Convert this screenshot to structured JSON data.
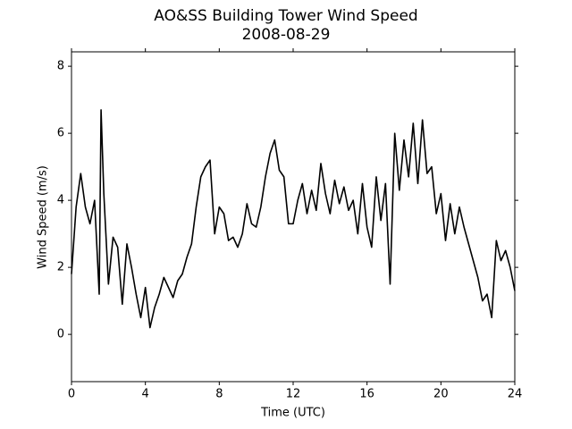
{
  "chart_data": {
    "type": "line",
    "title": "AO&SS Building Tower Wind Speed",
    "subtitle": "2008-08-29",
    "x_label": "Time (UTC)",
    "y_label": "Wind Speed (m/s)",
    "x": [
      0,
      0.25,
      0.5,
      0.75,
      1.0,
      1.25,
      1.5,
      1.6,
      1.75,
      2.0,
      2.25,
      2.5,
      2.75,
      3.0,
      3.25,
      3.5,
      3.75,
      4.0,
      4.25,
      4.5,
      4.75,
      5.0,
      5.25,
      5.5,
      5.75,
      6.0,
      6.25,
      6.5,
      6.75,
      7.0,
      7.25,
      7.5,
      7.75,
      8.0,
      8.25,
      8.5,
      8.75,
      9.0,
      9.25,
      9.5,
      9.75,
      10.0,
      10.25,
      10.5,
      10.75,
      11.0,
      11.25,
      11.5,
      11.75,
      12.0,
      12.25,
      12.5,
      12.75,
      13.0,
      13.25,
      13.5,
      13.75,
      14.0,
      14.25,
      14.5,
      14.75,
      15.0,
      15.25,
      15.5,
      15.75,
      16.0,
      16.25,
      16.5,
      16.75,
      17.0,
      17.25,
      17.5,
      17.75,
      18.0,
      18.25,
      18.5,
      18.75,
      19.0,
      19.25,
      19.5,
      19.75,
      20.0,
      20.25,
      20.5,
      20.75,
      21.0,
      21.25,
      21.5,
      21.75,
      22.0,
      22.25,
      22.5,
      22.75,
      23.0,
      23.25,
      23.5,
      23.75,
      24.0
    ],
    "series": [
      {
        "color": "#000000",
        "values": [
          1.8,
          3.8,
          4.8,
          3.8,
          3.3,
          4.0,
          1.2,
          6.7,
          4.2,
          1.5,
          2.9,
          2.6,
          0.9,
          2.7,
          2.0,
          1.2,
          0.5,
          1.4,
          0.2,
          0.8,
          1.2,
          1.7,
          1.4,
          1.1,
          1.6,
          1.8,
          2.3,
          2.7,
          3.8,
          4.7,
          5.0,
          5.2,
          3.0,
          3.8,
          3.6,
          2.8,
          2.9,
          2.6,
          3.0,
          3.9,
          3.3,
          3.2,
          3.8,
          4.7,
          5.4,
          5.8,
          4.9,
          4.7,
          3.3,
          3.3,
          4.0,
          4.5,
          3.6,
          4.3,
          3.7,
          5.1,
          4.2,
          3.6,
          4.6,
          3.9,
          4.4,
          3.7,
          4.0,
          3.0,
          4.5,
          3.2,
          2.6,
          4.7,
          3.4,
          4.5,
          1.5,
          6.0,
          4.3,
          5.8,
          4.7,
          6.3,
          4.5,
          6.4,
          4.8,
          5.0,
          3.6,
          4.2,
          2.8,
          3.9,
          3.0,
          3.8,
          3.2,
          2.7,
          2.2,
          1.7,
          1.0,
          1.2,
          0.5,
          2.8,
          2.2,
          2.5,
          2.0,
          1.3
        ]
      }
    ],
    "xlim": [
      0,
      24
    ],
    "xticks": [
      0,
      4,
      8,
      12,
      16,
      20,
      24
    ],
    "ylim": [
      -1.41,
      8.43
    ],
    "yticks": [
      0,
      2,
      4,
      6,
      8
    ],
    "grid": false
  }
}
